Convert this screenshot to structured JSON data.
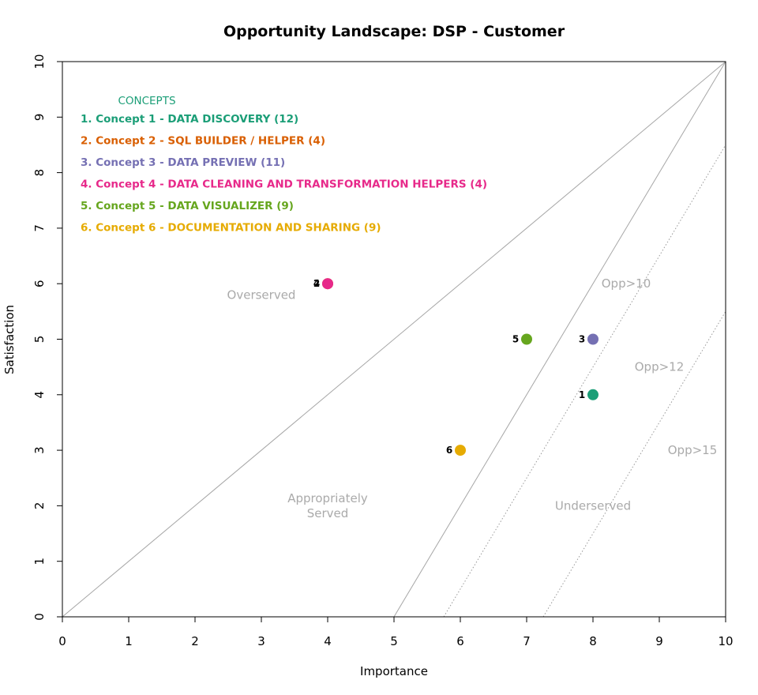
{
  "chart_data": {
    "type": "scatter",
    "title": "Opportunity Landscape: DSP - Customer",
    "xlabel": "Importance",
    "ylabel": "Satisfaction",
    "xlim": [
      0,
      10
    ],
    "ylim": [
      0,
      10
    ],
    "xticks": [
      "0",
      "1",
      "2",
      "3",
      "4",
      "5",
      "6",
      "7",
      "8",
      "9",
      "10"
    ],
    "yticks": [
      "0",
      "1",
      "2",
      "3",
      "4",
      "5",
      "6",
      "7",
      "8",
      "9",
      "10"
    ],
    "grid": false,
    "legend": {
      "title": "CONCEPTS",
      "title_color": "#1b9e77",
      "placement": "top-left",
      "items": [
        {
          "label": "1. Concept 1 - DATA DISCOVERY (12)",
          "color": "#1b9e77"
        },
        {
          "label": "2. Concept 2 - SQL BUILDER / HELPER (4)",
          "color": "#d95f02"
        },
        {
          "label": "3. Concept 3 - DATA PREVIEW (11)",
          "color": "#7570b3"
        },
        {
          "label": "4. Concept 4 - DATA CLEANING AND TRANSFORMATION HELPERS (4)",
          "color": "#e7298a"
        },
        {
          "label": "5. Concept 5 - DATA VISUALIZER (9)",
          "color": "#66a61e"
        },
        {
          "label": "6. Concept 6 - DOCUMENTATION AND SHARING (9)",
          "color": "#e6ab02"
        }
      ]
    },
    "points": [
      {
        "id": "1",
        "x": 8,
        "y": 4,
        "color": "#1b9e77"
      },
      {
        "id": "2",
        "x": 4,
        "y": 6,
        "color": "#d95f02"
      },
      {
        "id": "3",
        "x": 8,
        "y": 5,
        "color": "#7570b3"
      },
      {
        "id": "4",
        "x": 4,
        "y": 6,
        "color": "#e7298a"
      },
      {
        "id": "5",
        "x": 7,
        "y": 5,
        "color": "#66a61e"
      },
      {
        "id": "6",
        "x": 6,
        "y": 3,
        "color": "#e6ab02"
      }
    ],
    "reference_lines": [
      {
        "name": "satisfaction = importance",
        "style": "solid",
        "x1": 0,
        "y1": 0,
        "x2": 10,
        "y2": 10
      },
      {
        "name": "opportunity boundary",
        "style": "solid",
        "x1": 5,
        "y1": 0,
        "x2": 10,
        "y2": 10
      },
      {
        "name": "Opp>10",
        "style": "dotted",
        "x1": 5.75,
        "y1": 0,
        "x2": 10,
        "y2": 8.5
      },
      {
        "name": "Opp>15",
        "style": "dotted",
        "x1": 7.25,
        "y1": 0,
        "x2": 10,
        "y2": 5.5
      }
    ],
    "region_labels": [
      {
        "lines": [
          "Overserved"
        ],
        "x": 3,
        "y": 5.8
      },
      {
        "lines": [
          "Appropriately",
          "Served"
        ],
        "x": 4,
        "y": 2
      },
      {
        "lines": [
          "Underserved"
        ],
        "x": 8,
        "y": 2
      },
      {
        "lines": [
          "Opp>10"
        ],
        "x": 8.5,
        "y": 6
      },
      {
        "lines": [
          "Opp>12"
        ],
        "x": 9,
        "y": 4.5
      },
      {
        "lines": [
          "Opp>15"
        ],
        "x": 9.5,
        "y": 3
      }
    ]
  }
}
